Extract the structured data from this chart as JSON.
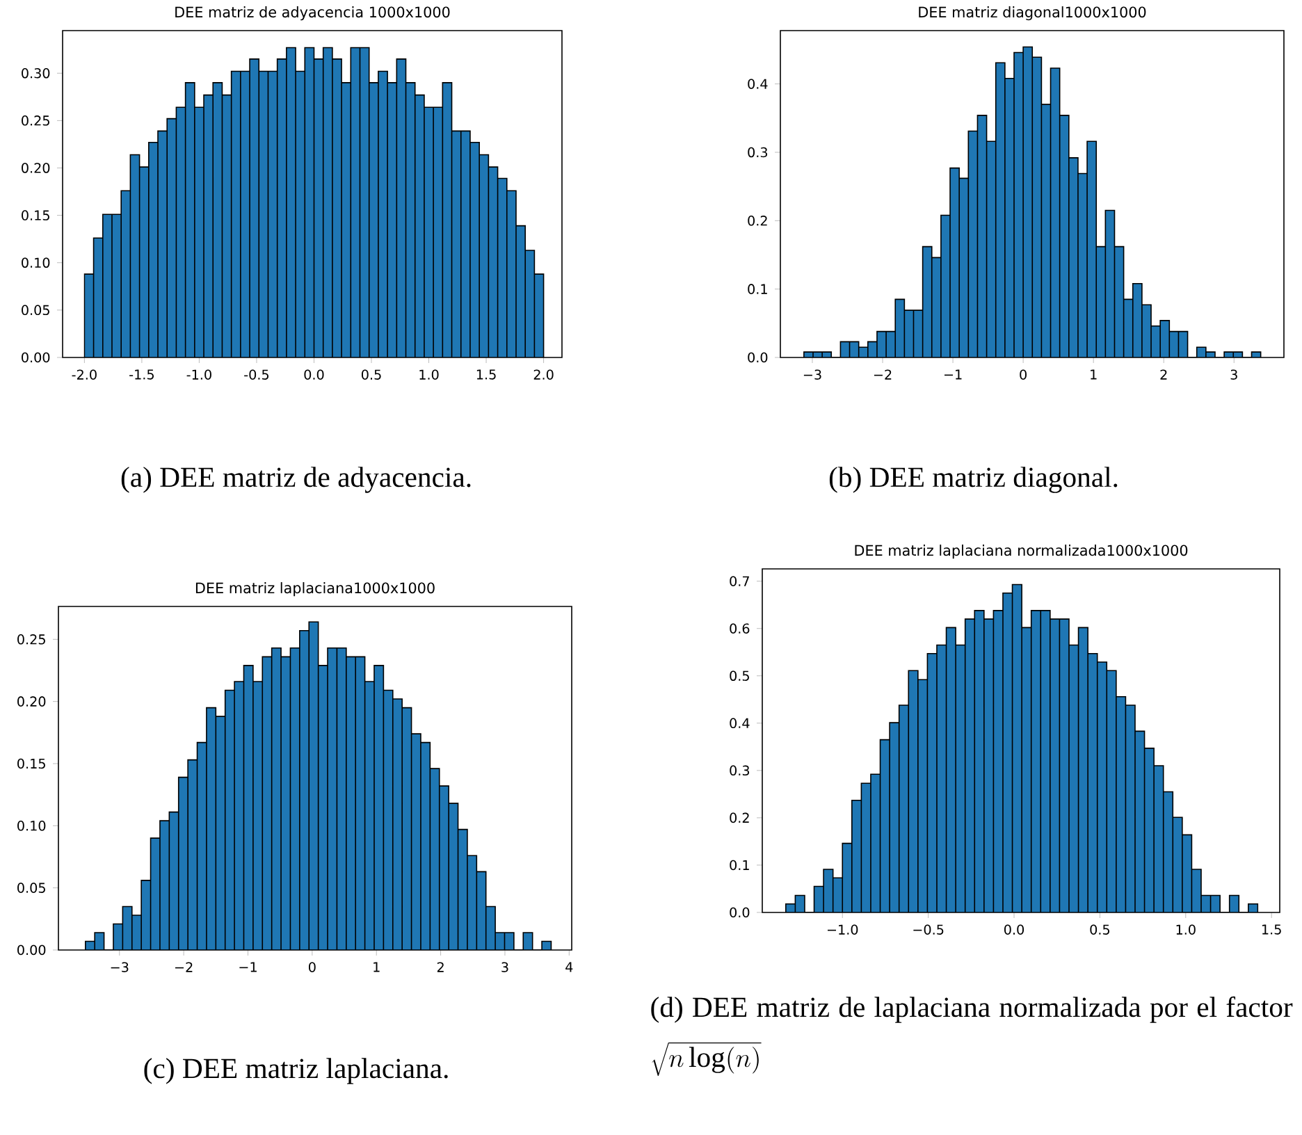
{
  "chart_data": [
    {
      "type": "histogram",
      "title": "DEE matriz de adyacencia 1000x1000",
      "color": "#1f77b4",
      "bins": [
        -2.0,
        -1.92,
        -1.84,
        -1.76,
        -1.68,
        -1.6,
        -1.52,
        -1.44,
        -1.36,
        -1.28,
        -1.2,
        -1.12,
        -1.04,
        -0.96,
        -0.88,
        -0.8,
        -0.72,
        -0.64,
        -0.56,
        -0.48,
        -0.4,
        -0.32,
        -0.24,
        -0.16,
        -0.08,
        0.0,
        0.08,
        0.16,
        0.24,
        0.32,
        0.4,
        0.48,
        0.56,
        0.64,
        0.72,
        0.8,
        0.88,
        0.96,
        1.04,
        1.12,
        1.2,
        1.28,
        1.36,
        1.44,
        1.52,
        1.6,
        1.68,
        1.76,
        1.84,
        1.92,
        2.0
      ],
      "values": [
        0.088,
        0.126,
        0.151,
        0.151,
        0.176,
        0.214,
        0.201,
        0.227,
        0.239,
        0.252,
        0.264,
        0.29,
        0.264,
        0.277,
        0.29,
        0.277,
        0.302,
        0.302,
        0.315,
        0.302,
        0.302,
        0.315,
        0.327,
        0.302,
        0.327,
        0.315,
        0.327,
        0.315,
        0.29,
        0.327,
        0.327,
        0.29,
        0.302,
        0.29,
        0.315,
        0.29,
        0.277,
        0.264,
        0.264,
        0.29,
        0.239,
        0.239,
        0.227,
        0.214,
        0.201,
        0.189,
        0.176,
        0.139,
        0.113,
        0.088
      ],
      "xlim": [
        -2.19,
        2.16
      ],
      "ylim": [
        0,
        0.345
      ],
      "xticks": [
        {
          "value": -2,
          "label": "-2.0"
        },
        {
          "value": -1.5,
          "label": "-1.5"
        },
        {
          "value": -1,
          "label": "-1.0"
        },
        {
          "value": -0.5,
          "label": "-0.5"
        },
        {
          "value": 0,
          "label": "0.0"
        },
        {
          "value": 0.5,
          "label": "0.5"
        },
        {
          "value": 1,
          "label": "1.0"
        },
        {
          "value": 1.5,
          "label": "1.5"
        },
        {
          "value": 2,
          "label": "2.0"
        }
      ],
      "yticks": [
        {
          "value": 0,
          "label": "0.00"
        },
        {
          "value": 0.05,
          "label": "0.05"
        },
        {
          "value": 0.1,
          "label": "0.10"
        },
        {
          "value": 0.15,
          "label": "0.15"
        },
        {
          "value": 0.2,
          "label": "0.20"
        },
        {
          "value": 0.25,
          "label": "0.25"
        },
        {
          "value": 0.3,
          "label": "0.30"
        }
      ],
      "annotations": [
        "(a) DEE matriz de adyacencia."
      ]
    },
    {
      "type": "histogram",
      "title": "DEE matriz diagonal1000x1000",
      "color": "#1f77b4",
      "bins": [
        -3.12,
        -2.99,
        -2.86,
        -2.73,
        -2.6,
        -2.47,
        -2.34,
        -2.21,
        -2.08,
        -1.95,
        -1.82,
        -1.69,
        -1.56,
        -1.43,
        -1.3,
        -1.17,
        -1.04,
        -0.91,
        -0.78,
        -0.65,
        -0.52,
        -0.39,
        -0.26,
        -0.13,
        0.0,
        0.13,
        0.26,
        0.39,
        0.52,
        0.65,
        0.78,
        0.91,
        1.04,
        1.17,
        1.3,
        1.43,
        1.56,
        1.69,
        1.82,
        1.95,
        2.08,
        2.21,
        2.34,
        2.47,
        2.6,
        2.73,
        2.86,
        2.99,
        3.12,
        3.25,
        3.38
      ],
      "values": [
        0.008,
        0.008,
        0.008,
        0,
        0.023,
        0.023,
        0.015,
        0.023,
        0.038,
        0.038,
        0.085,
        0.069,
        0.069,
        0.162,
        0.146,
        0.208,
        0.277,
        0.262,
        0.331,
        0.354,
        0.316,
        0.431,
        0.408,
        0.446,
        0.454,
        0.439,
        0.37,
        0.423,
        0.354,
        0.292,
        0.269,
        0.316,
        0.162,
        0.215,
        0.162,
        0.085,
        0.108,
        0.077,
        0.046,
        0.054,
        0.038,
        0.038,
        0,
        0.015,
        0.008,
        0,
        0.008,
        0.008,
        0,
        0.008
      ],
      "xlim": [
        -3.455,
        3.71
      ],
      "ylim": [
        0,
        0.478
      ],
      "xticks": [
        {
          "value": -3,
          "label": "−3"
        },
        {
          "value": -2,
          "label": "−2"
        },
        {
          "value": -1,
          "label": "−1"
        },
        0,
        1,
        2,
        3
      ],
      "yticks": [
        {
          "value": 0,
          "label": "0.0"
        },
        0.1,
        0.2,
        0.3,
        0.4
      ],
      "annotations": [
        "(b) DEE matriz diagonal."
      ]
    },
    {
      "type": "histogram",
      "title": "DEE matriz laplaciana1000x1000",
      "color": "#1f77b4",
      "bins": [
        -3.53,
        -3.385,
        -3.24,
        -3.095,
        -2.95,
        -2.805,
        -2.66,
        -2.515,
        -2.37,
        -2.225,
        -2.08,
        -1.935,
        -1.79,
        -1.645,
        -1.5,
        -1.355,
        -1.21,
        -1.065,
        -0.92,
        -0.775,
        -0.63,
        -0.485,
        -0.34,
        -0.195,
        -0.05,
        0.095,
        0.24,
        0.385,
        0.53,
        0.675,
        0.82,
        0.965,
        1.11,
        1.255,
        1.4,
        1.545,
        1.69,
        1.835,
        1.98,
        2.125,
        2.27,
        2.415,
        2.56,
        2.705,
        2.85,
        2.995,
        3.14,
        3.285,
        3.43,
        3.575,
        3.72
      ],
      "values": [
        0.007,
        0.014,
        0,
        0.021,
        0.035,
        0.028,
        0.056,
        0.09,
        0.104,
        0.111,
        0.139,
        0.153,
        0.167,
        0.195,
        0.188,
        0.209,
        0.216,
        0.229,
        0.216,
        0.236,
        0.243,
        0.236,
        0.243,
        0.257,
        0.264,
        0.229,
        0.243,
        0.243,
        0.236,
        0.236,
        0.216,
        0.229,
        0.209,
        0.202,
        0.195,
        0.174,
        0.167,
        0.146,
        0.132,
        0.118,
        0.097,
        0.076,
        0.063,
        0.035,
        0.014,
        0.014,
        0,
        0.014,
        0,
        0.007
      ],
      "xlim": [
        -3.95,
        4.04
      ],
      "ylim": [
        0,
        0.2765
      ],
      "xticks": [
        {
          "value": -3,
          "label": "−3"
        },
        {
          "value": -2,
          "label": "−2"
        },
        {
          "value": -1,
          "label": "−1"
        },
        0,
        1,
        2,
        3,
        4
      ],
      "yticks": [
        {
          "value": 0,
          "label": "0.00"
        },
        {
          "value": 0.05,
          "label": "0.05"
        },
        {
          "value": 0.1,
          "label": "0.10"
        },
        {
          "value": 0.15,
          "label": "0.15"
        },
        {
          "value": 0.2,
          "label": "0.20"
        },
        {
          "value": 0.25,
          "label": "0.25"
        }
      ],
      "annotations": [
        "(c) DEE matriz laplaciana."
      ]
    },
    {
      "type": "histogram",
      "title": "DEE matriz laplaciana normalizada1000x1000",
      "color": "#1f77b4",
      "bins": [
        -1.33,
        -1.275,
        -1.22,
        -1.165,
        -1.11,
        -1.055,
        -1.0,
        -0.945,
        -0.89,
        -0.835,
        -0.78,
        -0.725,
        -0.67,
        -0.615,
        -0.56,
        -0.505,
        -0.45,
        -0.395,
        -0.34,
        -0.285,
        -0.23,
        -0.175,
        -0.12,
        -0.065,
        -0.01,
        0.045,
        0.1,
        0.155,
        0.21,
        0.265,
        0.32,
        0.375,
        0.43,
        0.485,
        0.54,
        0.595,
        0.65,
        0.705,
        0.76,
        0.815,
        0.87,
        0.925,
        0.98,
        1.035,
        1.09,
        1.145,
        1.2,
        1.255,
        1.31,
        1.365,
        1.42
      ],
      "values": [
        0.018,
        0.036,
        0,
        0.055,
        0.091,
        0.073,
        0.146,
        0.237,
        0.273,
        0.292,
        0.365,
        0.401,
        0.438,
        0.511,
        0.492,
        0.547,
        0.565,
        0.602,
        0.565,
        0.62,
        0.638,
        0.62,
        0.638,
        0.675,
        0.693,
        0.602,
        0.638,
        0.638,
        0.62,
        0.62,
        0.565,
        0.602,
        0.547,
        0.529,
        0.511,
        0.456,
        0.438,
        0.383,
        0.347,
        0.31,
        0.255,
        0.201,
        0.164,
        0.091,
        0.036,
        0.036,
        0,
        0.036,
        0,
        0.018
      ],
      "xlim": [
        -1.467,
        1.548
      ],
      "ylim": [
        0,
        0.726
      ],
      "xticks": [
        {
          "value": -1,
          "label": "−1.0"
        },
        {
          "value": -0.5,
          "label": "−0.5"
        },
        {
          "value": 0,
          "label": "0.0"
        },
        0.5,
        {
          "value": 1,
          "label": "1.0"
        },
        1.5
      ],
      "yticks": [
        {
          "value": 0,
          "label": "0.0"
        },
        0.1,
        0.2,
        0.3,
        0.4,
        0.5,
        0.6,
        0.7
      ],
      "annotations": [
        "(d) DEE matriz de laplaciana normalizada por el factor",
        "\\sqrt{n\\log(n)}"
      ]
    }
  ]
}
